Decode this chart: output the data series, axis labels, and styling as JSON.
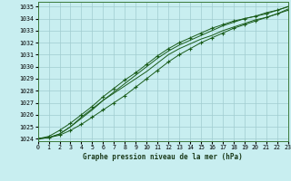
{
  "title": "Graphe pression niveau de la mer (hPa)",
  "background_color": "#c8eef0",
  "grid_color": "#a0ccd0",
  "line_color": "#1a5c1a",
  "x_ticks": [
    0,
    1,
    2,
    3,
    4,
    5,
    6,
    7,
    8,
    9,
    10,
    11,
    12,
    13,
    14,
    15,
    16,
    17,
    18,
    19,
    20,
    21,
    22,
    23
  ],
  "y_ticks": [
    1024,
    1025,
    1026,
    1027,
    1028,
    1029,
    1030,
    1031,
    1032,
    1033,
    1034,
    1035
  ],
  "ylim": [
    1023.8,
    1035.4
  ],
  "xlim": [
    0,
    23
  ],
  "series": [
    [
      1024.0,
      1024.1,
      1024.4,
      1025.0,
      1025.8,
      1026.5,
      1027.2,
      1027.8,
      1028.4,
      1029.0,
      1029.6,
      1030.3,
      1031.0,
      1031.5,
      1031.9,
      1032.3,
      1032.6,
      1033.0,
      1033.3,
      1033.6,
      1033.9,
      1034.1,
      1034.4,
      1034.8
    ],
    [
      1024.0,
      1024.1,
      1024.3,
      1024.7,
      1025.2,
      1025.8,
      1026.4,
      1027.0,
      1027.6,
      1028.3,
      1029.0,
      1029.7,
      1030.4,
      1031.0,
      1031.5,
      1032.0,
      1032.4,
      1032.8,
      1033.2,
      1033.5,
      1033.8,
      1034.1,
      1034.4,
      1034.7
    ],
    [
      1024.0,
      1024.1,
      1024.4,
      1025.0,
      1025.7,
      1026.4,
      1027.2,
      1027.9,
      1028.6,
      1029.3,
      1030.0,
      1030.7,
      1031.3,
      1031.8,
      1032.2,
      1032.6,
      1033.0,
      1033.4,
      1033.7,
      1034.0,
      1034.2,
      1034.5,
      1034.7,
      1035.0
    ],
    [
      1024.0,
      1024.2,
      1024.7,
      1025.3,
      1026.0,
      1026.7,
      1027.5,
      1028.2,
      1028.9,
      1029.5,
      1030.2,
      1030.9,
      1031.5,
      1032.0,
      1032.4,
      1032.8,
      1033.2,
      1033.5,
      1033.8,
      1034.0,
      1034.2,
      1034.4,
      1034.7,
      1035.0
    ]
  ],
  "marker_series": [
    1,
    3
  ],
  "title_fontsize": 5.5,
  "tick_fontsize": 4.8
}
